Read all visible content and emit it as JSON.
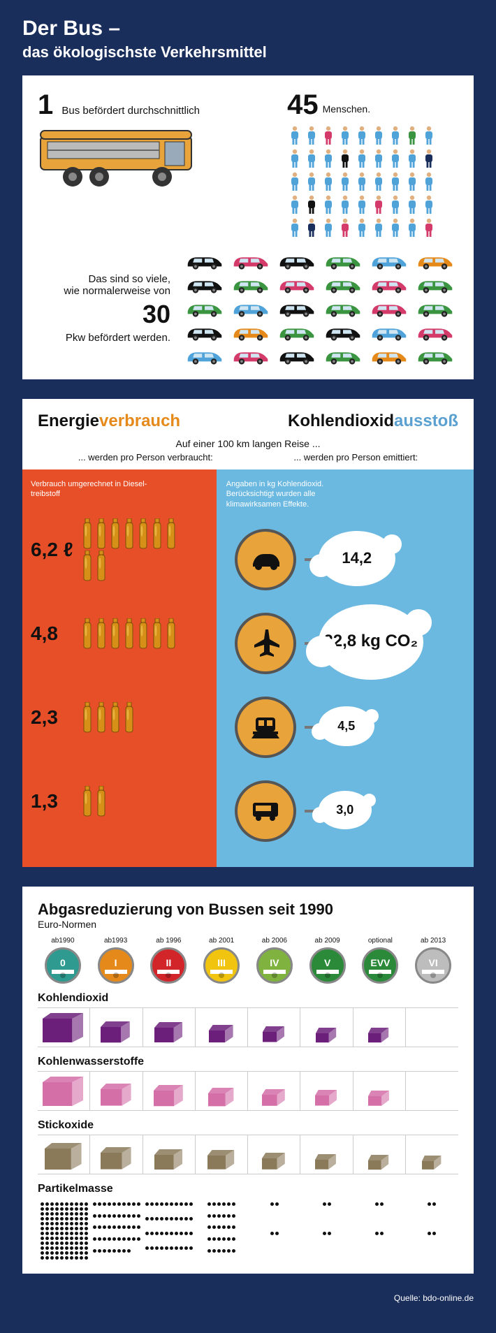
{
  "title_line1": "Der Bus –",
  "title_line2": "das ökologischste Verkehrsmittel",
  "panel1": {
    "fact1_num": "1",
    "fact1_text": "Bus befördert durchschnittlich",
    "people_num": "45",
    "people_label": "Menschen.",
    "people_colors": [
      "#4fa3d9",
      "#4fa3d9",
      "#d43b6a",
      "#4fa3d9",
      "#4fa3d9",
      "#4fa3d9",
      "#4fa3d9",
      "#3a9440",
      "#4fa3d9",
      "#4fa3d9",
      "#4fa3d9",
      "#4fa3d9",
      "#111",
      "#4fa3d9",
      "#4fa3d9",
      "#4fa3d9",
      "#4fa3d9",
      "#1a2e5c",
      "#4fa3d9",
      "#4fa3d9",
      "#4fa3d9",
      "#4fa3d9",
      "#4fa3d9",
      "#4fa3d9",
      "#4fa3d9",
      "#4fa3d9",
      "#4fa3d9",
      "#4fa3d9",
      "#111",
      "#4fa3d9",
      "#4fa3d9",
      "#4fa3d9",
      "#d43b6a",
      "#4fa3d9",
      "#4fa3d9",
      "#4fa3d9",
      "#4fa3d9",
      "#1a2e5c",
      "#4fa3d9",
      "#d43b6a",
      "#4fa3d9",
      "#4fa3d9",
      "#4fa3d9",
      "#4fa3d9",
      "#d43b6a"
    ],
    "cars_text1": "Das sind so viele,",
    "cars_text2": "wie normalerweise von",
    "cars_num": "30",
    "cars_text3": "Pkw befördert werden.",
    "car_colors": [
      "#111",
      "#d43b6a",
      "#111",
      "#3a9440",
      "#4fa3d9",
      "#e58a1a",
      "#111",
      "#3a9440",
      "#d43b6a",
      "#3a9440",
      "#d43b6a",
      "#3a9440",
      "#3a9440",
      "#4fa3d9",
      "#111",
      "#3a9440",
      "#d43b6a",
      "#3a9440",
      "#111",
      "#e58a1a",
      "#3a9440",
      "#111",
      "#4fa3d9",
      "#d43b6a",
      "#4fa3d9",
      "#d43b6a",
      "#111",
      "#3a9440",
      "#e58a1a",
      "#3a9440"
    ],
    "bus_color": "#e8a43a"
  },
  "panel2": {
    "heading_left_a": "Energie",
    "heading_left_b": "verbrauch",
    "heading_right_a": "Kohlendioxid",
    "heading_right_b": "ausstoß",
    "sub_center": "Auf einer 100 km langen Reise ...",
    "sub_left": "... werden pro Person verbraucht:",
    "sub_right": "... werden pro Person emittiert:",
    "note_left": "Verbrauch umgerechnet in Diesel-treibstoff",
    "note_right": "Angaben in kg Kohlendioxid. Berücksichtigt wurden alle klimawirksamen Effekte.",
    "left_bg": "#e64f27",
    "right_bg": "#6bb8e0",
    "bottle_color": "#d69018",
    "icon_bg": "#e8a43a",
    "rows": [
      {
        "mode": "car",
        "diesel": "6,2 ℓ",
        "bottles": 9,
        "co2": "14,2",
        "cloud_size": 110
      },
      {
        "mode": "plane",
        "diesel": "4,8",
        "bottles": 7,
        "co2": "22,8 kg CO₂",
        "cloud_size": 150
      },
      {
        "mode": "train",
        "diesel": "2,3",
        "bottles": 4,
        "co2": "4,5",
        "cloud_size": 80
      },
      {
        "mode": "bus",
        "diesel": "1,3",
        "bottles": 2,
        "co2": "3,0",
        "cloud_size": 76
      }
    ]
  },
  "panel3": {
    "title": "Abgasreduzierung von Bussen seit 1990",
    "subtitle": "Euro-Normen",
    "norms": [
      {
        "year": "ab1990",
        "label": "0",
        "color": "#2f9a8f"
      },
      {
        "year": "ab1993",
        "label": "I",
        "color": "#e58a1a"
      },
      {
        "year": "ab 1996",
        "label": "II",
        "color": "#d2252a"
      },
      {
        "year": "ab 2001",
        "label": "III",
        "color": "#f1c40f"
      },
      {
        "year": "ab 2006",
        "label": "IV",
        "color": "#7fb23f"
      },
      {
        "year": "ab 2009",
        "label": "V",
        "color": "#2a8a39"
      },
      {
        "year": "optional",
        "label": "EVV",
        "color": "#2a8a39"
      },
      {
        "year": "ab 2013",
        "label": "VI",
        "color": "#bdbdbd"
      }
    ],
    "emissions": [
      {
        "name": "Kohlendioxid",
        "color": "#6b1e7a",
        "sizes": [
          1.0,
          0.55,
          0.5,
          0.35,
          0.25,
          0.2,
          0.2,
          0.0
        ]
      },
      {
        "name": "Kohlenwasserstoffe",
        "color": "#d46fa8",
        "sizes": [
          1.0,
          0.6,
          0.55,
          0.4,
          0.3,
          0.25,
          0.22,
          0.0
        ]
      },
      {
        "name": "Stickoxide",
        "color": "#8a7a5a",
        "sizes": [
          0.85,
          0.6,
          0.5,
          0.45,
          0.3,
          0.22,
          0.2,
          0.15
        ]
      }
    ],
    "particles_label": "Partikelmasse",
    "particles": [
      120,
      48,
      40,
      30,
      4,
      4,
      4,
      4
    ]
  },
  "source": "Quelle: bdo-online.de"
}
